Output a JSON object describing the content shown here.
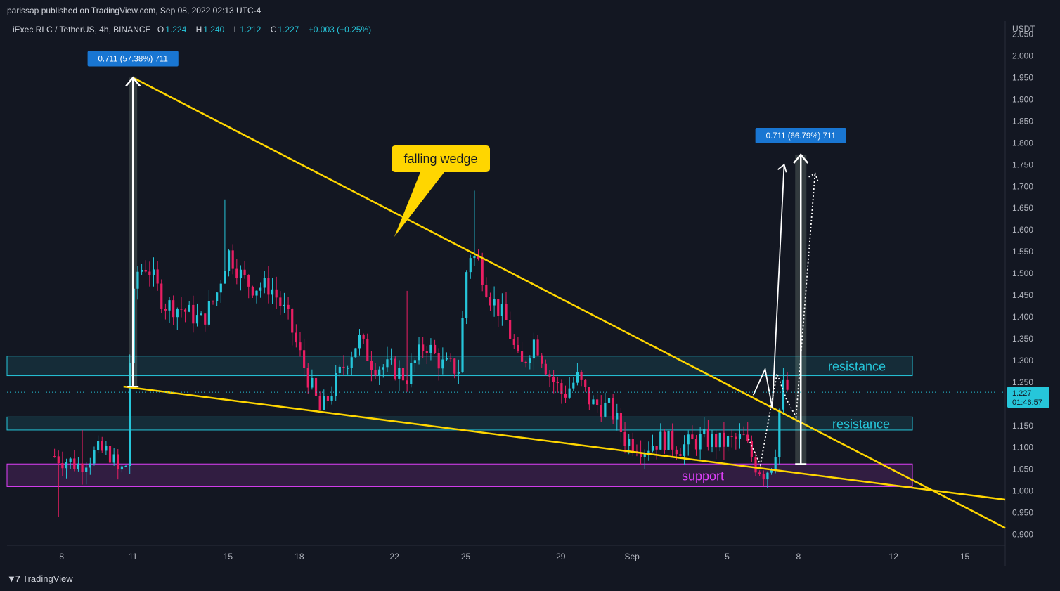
{
  "header": {
    "published_by": "parissap published on TradingView.com, Sep 08, 2022 02:13 UTC-4"
  },
  "legend": {
    "symbol": "iExec RLC / TetherUS, 4h, BINANCE",
    "open_label": "O",
    "open": "1.224",
    "high_label": "H",
    "high": "1.240",
    "low_label": "L",
    "low": "1.212",
    "close_label": "C",
    "close": "1.227",
    "change": "+0.003 (+0.25%)"
  },
  "price_tag": {
    "price": "1.227",
    "countdown": "01:46:57"
  },
  "footer": {
    "brand": "TradingView"
  },
  "colors": {
    "up": "#26c6da",
    "down": "#e91e63",
    "wedge": "#ffd600",
    "resistance": "#26c6da",
    "support": "#e040fb",
    "label_blue": "#1976d2"
  },
  "chart_data": {
    "type": "candlestick",
    "currency": "USDT",
    "y_range": [
      0.875,
      2.08
    ],
    "y_ticks": [
      "2.050",
      "2.000",
      "1.950",
      "1.900",
      "1.850",
      "1.800",
      "1.750",
      "1.700",
      "1.650",
      "1.600",
      "1.550",
      "1.500",
      "1.450",
      "1.400",
      "1.350",
      "1.300",
      "1.250",
      "1.200",
      "1.150",
      "1.100",
      "1.050",
      "1.000",
      "0.950",
      "0.900"
    ],
    "x_ticks": [
      {
        "label": "8",
        "t": 0.3
      },
      {
        "label": "11",
        "t": 3.3
      },
      {
        "label": "15",
        "t": 7.3
      },
      {
        "label": "18",
        "t": 10.3
      },
      {
        "label": "22",
        "t": 14.3
      },
      {
        "label": "25",
        "t": 17.3
      },
      {
        "label": "29",
        "t": 21.3
      },
      {
        "label": "Sep",
        "t": 24.3
      },
      {
        "label": "5",
        "t": 28.3
      },
      {
        "label": "8",
        "t": 31.3
      },
      {
        "label": "12",
        "t": 35.3
      },
      {
        "label": "15",
        "t": 38.3
      }
    ],
    "x_range": [
      -2.0,
      40.0
    ],
    "anchors": [
      [
        0.0,
        1.08
      ],
      [
        1.0,
        1.06
      ],
      [
        1.8,
        1.09
      ],
      [
        2.3,
        1.09
      ],
      [
        2.7,
        1.04
      ],
      [
        3.0,
        1.06
      ],
      [
        3.1,
        1.24
      ],
      [
        3.4,
        1.5
      ],
      [
        3.9,
        1.52
      ],
      [
        4.6,
        1.43
      ],
      [
        5.3,
        1.42
      ],
      [
        6.2,
        1.39
      ],
      [
        6.8,
        1.45
      ],
      [
        7.3,
        1.55
      ],
      [
        7.9,
        1.49
      ],
      [
        8.3,
        1.47
      ],
      [
        9.1,
        1.47
      ],
      [
        9.8,
        1.4
      ],
      [
        10.4,
        1.3
      ],
      [
        11.2,
        1.18
      ],
      [
        12.1,
        1.28
      ],
      [
        12.8,
        1.35
      ],
      [
        13.4,
        1.29
      ],
      [
        14.3,
        1.28
      ],
      [
        14.8,
        1.26
      ],
      [
        15.6,
        1.34
      ],
      [
        16.3,
        1.29
      ],
      [
        17.0,
        1.28
      ],
      [
        17.4,
        1.55
      ],
      [
        17.8,
        1.53
      ],
      [
        18.3,
        1.45
      ],
      [
        19.0,
        1.39
      ],
      [
        19.6,
        1.28
      ],
      [
        20.2,
        1.35
      ],
      [
        20.8,
        1.27
      ],
      [
        21.4,
        1.22
      ],
      [
        22.0,
        1.26
      ],
      [
        22.6,
        1.2
      ],
      [
        23.4,
        1.19
      ],
      [
        24.0,
        1.12
      ],
      [
        24.8,
        1.1
      ],
      [
        25.6,
        1.12
      ],
      [
        26.3,
        1.1
      ],
      [
        27.3,
        1.12
      ],
      [
        28.1,
        1.11
      ],
      [
        29.0,
        1.12
      ],
      [
        29.5,
        1.06
      ],
      [
        29.9,
        1.04
      ],
      [
        30.3,
        1.08
      ],
      [
        30.6,
        1.24
      ],
      [
        31.0,
        1.227
      ]
    ],
    "spikes": [
      {
        "t": 3.4,
        "high": 1.95
      },
      {
        "t": 7.2,
        "high": 1.67
      },
      {
        "t": 17.6,
        "high": 1.69
      },
      {
        "t": 14.8,
        "high": 1.46
      },
      {
        "t": 1.2,
        "high": 1.14
      },
      {
        "t": 0.2,
        "low": 0.94
      }
    ],
    "annotations": {
      "falling_wedge_label": "falling wedge",
      "wedge_upper": [
        [
          3.3,
          1.95
        ],
        [
          40.0,
          0.915
        ]
      ],
      "wedge_lower": [
        [
          2.9,
          1.24
        ],
        [
          40.0,
          0.98
        ]
      ],
      "resistance_zones": [
        {
          "label": "resistance",
          "low": 1.265,
          "high": 1.31
        },
        {
          "label": "resistance",
          "low": 1.14,
          "high": 1.17
        }
      ],
      "support_zone": {
        "label": "support",
        "low": 1.01,
        "high": 1.062
      },
      "measure_left": {
        "text": "0.711 (57.38%) 711",
        "from": 1.24,
        "to": 1.95,
        "t": 3.3
      },
      "measure_right": {
        "text": "0.711 (66.79%) 711",
        "from": 1.062,
        "to": 1.773,
        "t": 31.4
      },
      "projection_solid": [
        [
          29.4,
          1.22
        ],
        [
          29.9,
          1.28
        ],
        [
          30.2,
          1.19
        ],
        [
          30.7,
          1.75
        ]
      ],
      "projection_dotted": [
        [
          29.2,
          1.12
        ],
        [
          29.7,
          1.06
        ],
        [
          30.4,
          1.27
        ],
        [
          30.8,
          1.21
        ],
        [
          31.2,
          1.17
        ],
        [
          32.0,
          1.73
        ]
      ]
    }
  }
}
